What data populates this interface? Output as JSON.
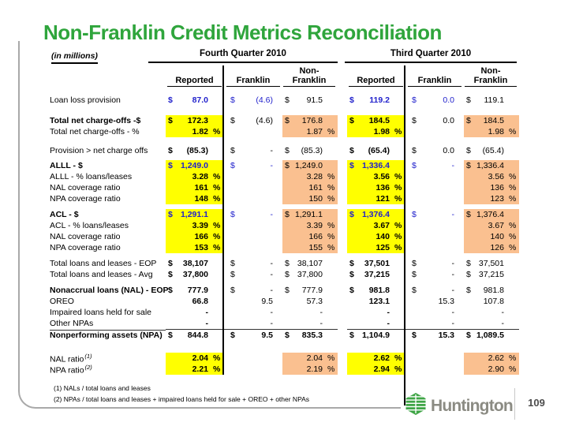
{
  "slide": {
    "title": "Non-Franklin Credit Metrics Reconciliation",
    "page_number": "109",
    "logo_text": "Huntington"
  },
  "colors": {
    "title_green": "#2FA53C",
    "highlight_yellow": "#FFFF00",
    "highlight_tan": "#FAC090",
    "metric_blue": "#2222CC",
    "logo_green": "#3FA546",
    "logo_gray": "#8B8B83"
  },
  "table": {
    "header": {
      "units_label": "(in millions)",
      "q4_label": "Fourth Quarter 2010",
      "q3_label": "Third Quarter 2010",
      "sub": {
        "reported": "Reported",
        "franklin": "Franklin",
        "non_line1": "Non-",
        "non_line2": "Franklin"
      }
    },
    "rows": [
      {
        "spacer": 8
      },
      {
        "label": "Loan loss provision",
        "blue": true,
        "cells": [
          {
            "c": "$",
            "v": "87.0"
          },
          {
            "c": "$",
            "v": "(4.6)"
          },
          {
            "c": "$",
            "v": "91.5"
          },
          {
            "c": "$",
            "v": "119.2"
          },
          {
            "c": "$",
            "v": "0.0"
          },
          {
            "c": "$",
            "v": "119.1"
          }
        ]
      },
      {
        "spacer": 12
      },
      {
        "label": "Total net charge-offs -$",
        "bold_label": true,
        "hl": true,
        "cells": [
          {
            "c": "$",
            "v": "172.3"
          },
          {
            "c": "$",
            "v": "(4.6)"
          },
          {
            "c": "$",
            "v": "176.8"
          },
          {
            "c": "$",
            "v": "184.5"
          },
          {
            "c": "$",
            "v": "0.0"
          },
          {
            "c": "$",
            "v": "184.5"
          }
        ]
      },
      {
        "label": "Total net charge-offs - %",
        "hl": true,
        "cells": [
          {
            "v": "1.82",
            "p": "%"
          },
          {},
          {
            "v": "1.87",
            "p": "%"
          },
          {
            "v": "1.98",
            "p": "%"
          },
          {},
          {
            "v": "1.98",
            "p": "%"
          }
        ]
      },
      {
        "spacer": 10
      },
      {
        "label": "Provision > net charge offs",
        "cells": [
          {
            "c": "$",
            "v": "(85.3)"
          },
          {
            "c": "$",
            "v": "-"
          },
          {
            "c": "$",
            "v": "(85.3)"
          },
          {
            "c": "$",
            "v": "(65.4)"
          },
          {
            "c": "$",
            "v": "0.0"
          },
          {
            "c": "$",
            "v": "(65.4)"
          }
        ]
      },
      {
        "spacer": 5
      },
      {
        "label": "ALLL - $",
        "bold_label": true,
        "hl": true,
        "blue": true,
        "cells": [
          {
            "c": "$",
            "v": "1,249.0"
          },
          {
            "c": "$",
            "v": "-"
          },
          {
            "c": "$",
            "v": "1,249.0"
          },
          {
            "c": "$",
            "v": "1,336.4"
          },
          {
            "c": "$",
            "v": "-"
          },
          {
            "c": "$",
            "v": "1,336.4"
          }
        ]
      },
      {
        "label": "ALLL - % loans/leases",
        "hl": true,
        "cells": [
          {
            "v": "3.28",
            "p": "%"
          },
          {},
          {
            "v": "3.28",
            "p": "%"
          },
          {
            "v": "3.56",
            "p": "%"
          },
          {},
          {
            "v": "3.56",
            "p": "%"
          }
        ]
      },
      {
        "label": "NAL coverage ratio",
        "hl": true,
        "cells": [
          {
            "v": "161",
            "p": "%"
          },
          {},
          {
            "v": "161",
            "p": "%"
          },
          {
            "v": "136",
            "p": "%"
          },
          {},
          {
            "v": "136",
            "p": "%"
          }
        ]
      },
      {
        "label": "NPA coverage ratio",
        "hl": true,
        "cells": [
          {
            "v": "148",
            "p": "%"
          },
          {},
          {
            "v": "150",
            "p": "%"
          },
          {
            "v": "121",
            "p": "%"
          },
          {},
          {
            "v": "123",
            "p": "%"
          }
        ]
      },
      {
        "spacer": 6
      },
      {
        "label": "ACL - $",
        "bold_label": true,
        "hl": true,
        "blue": true,
        "cells": [
          {
            "c": "$",
            "v": "1,291.1"
          },
          {
            "c": "$",
            "v": "-"
          },
          {
            "c": "$",
            "v": "1,291.1"
          },
          {
            "c": "$",
            "v": "1,376.4"
          },
          {
            "c": "$",
            "v": "-"
          },
          {
            "c": "$",
            "v": "1,376.4"
          }
        ]
      },
      {
        "label": "ACL - % loans/leases",
        "hl": true,
        "cells": [
          {
            "v": "3.39",
            "p": "%"
          },
          {},
          {
            "v": "3.39",
            "p": "%"
          },
          {
            "v": "3.67",
            "p": "%"
          },
          {},
          {
            "v": "3.67",
            "p": "%"
          }
        ]
      },
      {
        "label": "NAL coverage ratio",
        "hl": true,
        "cells": [
          {
            "v": "166",
            "p": "%"
          },
          {},
          {
            "v": "166",
            "p": "%"
          },
          {
            "v": "140",
            "p": "%"
          },
          {},
          {
            "v": "140",
            "p": "%"
          }
        ]
      },
      {
        "label": "NPA coverage ratio",
        "hl": true,
        "cells": [
          {
            "v": "153",
            "p": "%"
          },
          {},
          {
            "v": "155",
            "p": "%"
          },
          {
            "v": "125",
            "p": "%"
          },
          {},
          {
            "v": "126",
            "p": "%"
          }
        ]
      },
      {
        "spacer": 6
      },
      {
        "label": "Total loans and leases - EOP",
        "cells": [
          {
            "c": "$",
            "v": "38,107"
          },
          {
            "c": "$",
            "v": "-"
          },
          {
            "c": "$",
            "v": "38,107"
          },
          {
            "c": "$",
            "v": "37,501"
          },
          {
            "c": "$",
            "v": "-"
          },
          {
            "c": "$",
            "v": "37,501"
          }
        ]
      },
      {
        "label": "Total loans and leases - Avg",
        "cells": [
          {
            "c": "$",
            "v": "37,800"
          },
          {
            "c": "$",
            "v": "-"
          },
          {
            "c": "$",
            "v": "37,800"
          },
          {
            "c": "$",
            "v": "37,215"
          },
          {
            "c": "$",
            "v": "-"
          },
          {
            "c": "$",
            "v": "37,215"
          }
        ]
      },
      {
        "spacer": 6
      },
      {
        "label": "Nonaccrual loans (NAL) - EOP",
        "bold_label": true,
        "cells": [
          {
            "c": "$",
            "v": "777.9"
          },
          {
            "c": "$",
            "v": "-"
          },
          {
            "c": "$",
            "v": "777.9"
          },
          {
            "c": "$",
            "v": "981.8"
          },
          {
            "c": "$",
            "v": "-"
          },
          {
            "c": "$",
            "v": "981.8"
          }
        ]
      },
      {
        "label": "OREO",
        "cells": [
          {
            "v": "66.8"
          },
          {
            "v": "9.5"
          },
          {
            "v": "57.3"
          },
          {
            "v": "123.1"
          },
          {
            "v": "15.3"
          },
          {
            "v": "107.8"
          }
        ]
      },
      {
        "label": "Impaired loans held for sale",
        "cells": [
          {
            "v": "-"
          },
          {
            "v": "-"
          },
          {
            "v": "-"
          },
          {
            "v": "-"
          },
          {
            "v": "-"
          },
          {
            "v": "-"
          }
        ]
      },
      {
        "label": "Other NPAs",
        "cells": [
          {
            "v": "-"
          },
          {
            "v": "-"
          },
          {
            "v": "-"
          },
          {
            "v": "-"
          },
          {
            "v": "-"
          },
          {
            "v": "-"
          }
        ]
      },
      {
        "label": "Nonperforming assets (NPA)",
        "bold_label": true,
        "topline": true,
        "all_bold": true,
        "cells": [
          {
            "c": "$",
            "v": "844.8"
          },
          {
            "c": "$",
            "v": "9.5"
          },
          {
            "c": "$",
            "v": "835.3"
          },
          {
            "c": "$",
            "v": "1,104.9"
          },
          {
            "c": "$",
            "v": "15.3"
          },
          {
            "c": "$",
            "v": "1,089.5"
          }
        ]
      },
      {
        "spacer": 14
      },
      {
        "label": "NAL ratio",
        "sup": "(1)",
        "hl": true,
        "cells": [
          {
            "v": "2.04",
            "p": "%"
          },
          {},
          {
            "v": "2.04",
            "p": "%"
          },
          {
            "v": "2.62",
            "p": "%"
          },
          {},
          {
            "v": "2.62",
            "p": "%"
          }
        ]
      },
      {
        "label": "NPA ratio",
        "sup": "(2)",
        "hl": true,
        "cells": [
          {
            "v": "2.21",
            "p": "%"
          },
          {},
          {
            "v": "2.19",
            "p": "%"
          },
          {
            "v": "2.94",
            "p": "%"
          },
          {},
          {
            "v": "2.90",
            "p": "%"
          }
        ]
      }
    ]
  },
  "footnotes": [
    "(1) NALs / total loans and leases",
    "(2) NPAs / total loans and leases + impaired loans held for sale + OREO + other NPAs"
  ]
}
